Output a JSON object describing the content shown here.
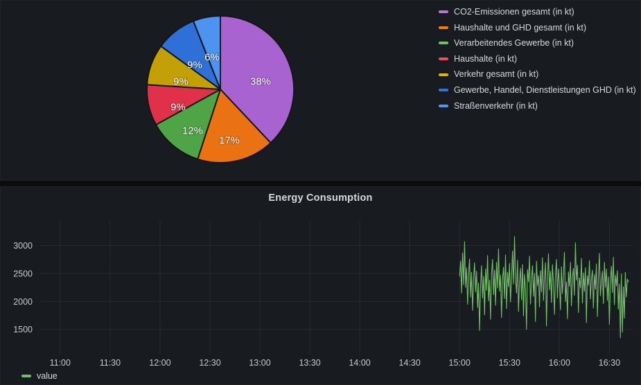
{
  "theme": {
    "page_bg": "#0b0c0e",
    "panel_bg": "#181b1f",
    "panel_border": "#202226",
    "title_text": "#d8d9da",
    "legend_text": "#d8d9da",
    "axis_text": "#c7c8cc",
    "grid_line": "rgba(204,204,220,0.09)",
    "pie_label_text": "#ffffff",
    "pie_stroke": "#141619"
  },
  "chart_data": [
    {
      "type": "pie",
      "unit": "%",
      "labels": [
        "CO2-Emissionen gesamt (in kt)",
        "Haushalte und GHD gesamt (in kt)",
        "Verarbeitendes Gewerbe (in kt)",
        "Haushalte (in kt)",
        "Verkehr gesamt (in kt)",
        "Gewerbe, Handel, Dienstleistungen GHD (in kt)",
        "Straßenverkehr (in kt)"
      ],
      "values": [
        38,
        17,
        12,
        9,
        9,
        9,
        6
      ],
      "legend_colors": [
        "#B877D9",
        "#FF780A",
        "#73BF69",
        "#F2495C",
        "#E0B400",
        "#3274D9",
        "#5794F2"
      ],
      "slice_colors": [
        "#A963D1",
        "#EA7212",
        "#4FA546",
        "#E0304A",
        "#C3A006",
        "#2F6FD8",
        "#4D93F0"
      ],
      "legend_position": "right",
      "label_format": "percent",
      "start_angle": "top",
      "direction": "clockwise"
    },
    {
      "type": "line",
      "title": "Energy Consumption",
      "xlabel": "",
      "ylabel": "",
      "grid": true,
      "legend_position": "bottom-left",
      "x_ticks": [
        "11:00",
        "11:30",
        "12:00",
        "12:30",
        "13:00",
        "13:30",
        "14:00",
        "14:30",
        "15:00",
        "15:30",
        "16:00",
        "16:30"
      ],
      "x_tick_minutes": [
        660,
        690,
        720,
        750,
        780,
        810,
        840,
        870,
        900,
        930,
        960,
        990
      ],
      "xlim_minutes": [
        648,
        1004
      ],
      "y_ticks": [
        1500,
        2000,
        2500,
        3000
      ],
      "ylim": [
        1050,
        3440
      ],
      "series": [
        {
          "name": "value",
          "color": "#73BF69",
          "start_minute": 900,
          "step_minutes": 0.6,
          "values": [
            2450,
            2720,
            2150,
            2870,
            2300,
            3070,
            2250,
            2600,
            1950,
            2480,
            2760,
            2080,
            2520,
            1840,
            2410,
            2690,
            2170,
            2540,
            1890,
            2330,
            1480,
            2290,
            2640,
            2060,
            2450,
            1760,
            2580,
            2200,
            2820,
            2010,
            2380,
            1680,
            2490,
            2750,
            2120,
            2560,
            1930,
            2700,
            2240,
            2940,
            2180,
            2470,
            1710,
            2390,
            2610,
            2050,
            2830,
            1870,
            2520,
            2260,
            2680,
            1990,
            2440,
            2900,
            2310,
            3160,
            2420,
            2150,
            2740,
            1820,
            2360,
            2590,
            2030,
            2660,
            1740,
            2480,
            2230,
            1500,
            2570,
            2350,
            2810,
            1950,
            2400,
            2640,
            2090,
            2500,
            1640,
            2720,
            2280,
            2460,
            1900,
            2550,
            2170,
            2780,
            2020,
            2430,
            2690,
            1560,
            2380,
            2850,
            2210,
            2540,
            1980,
            2660,
            2320,
            1770,
            2490,
            2750,
            2060,
            2580,
            2300,
            1850,
            2620,
            2140,
            2460,
            2880,
            2000,
            2350,
            1690,
            2530,
            2270,
            2700,
            1920,
            2440,
            2590,
            2110,
            3050,
            2380,
            2650,
            1800,
            2420,
            2240,
            2770,
            1970,
            2510,
            2180,
            2600,
            1620,
            2460,
            2290,
            2730,
            2040,
            2390,
            2560,
            1880,
            2480,
            2220,
            2670,
            1730,
            2410,
            2860,
            2100,
            2330,
            2540,
            1960,
            2700,
            2250,
            2580,
            2020,
            2440,
            1590,
            2360,
            2630,
            2160,
            2790,
            1940,
            2470,
            2280,
            2550,
            1860,
            2310,
            1350,
            2490,
            1450,
            2260,
            1700,
            2520,
            2080,
            2400,
            2350
          ]
        }
      ]
    }
  ]
}
